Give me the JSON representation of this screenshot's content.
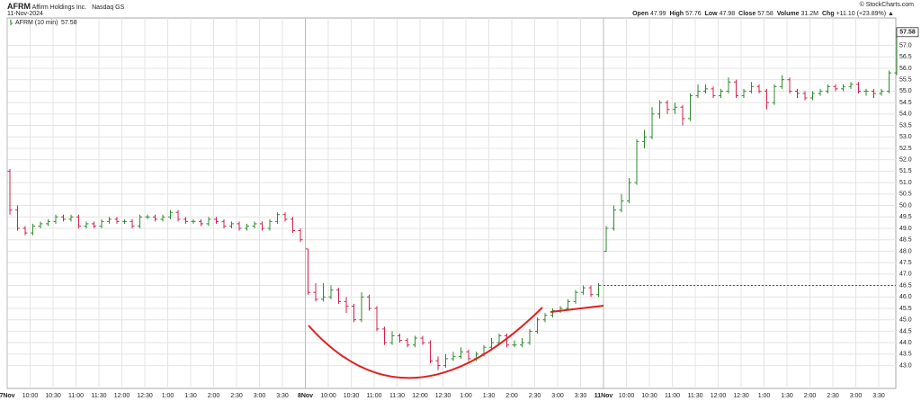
{
  "header": {
    "symbol": "AFRM",
    "name": "Affirm Holdings Inc.",
    "exchange": "Nasdaq GS",
    "date": "11-Nov-2024",
    "copyright": "© StockCharts.com",
    "stats": [
      {
        "label": "Open",
        "value": "47.99"
      },
      {
        "label": "High",
        "value": "57.76"
      },
      {
        "label": "Low",
        "value": "47.98"
      },
      {
        "label": "Close",
        "value": "57.58"
      },
      {
        "label": "Volume",
        "value": "31.2M"
      },
      {
        "label": "Chg",
        "value": "+11.10 (+23.89%) ▲"
      }
    ]
  },
  "chart_data": {
    "type": "ohlc",
    "categories": [
      "7Nov",
      null,
      null,
      "10:00",
      null,
      null,
      "10:30",
      null,
      null,
      "11:00",
      null,
      null,
      "11:30",
      null,
      null,
      "12:00",
      null,
      null,
      "12:30",
      null,
      null,
      "1:00",
      null,
      null,
      "1:30",
      null,
      null,
      "2:00",
      null,
      null,
      "2:30",
      null,
      null,
      "3:00",
      null,
      null,
      "3:30",
      null,
      null,
      "8Nov",
      null,
      null,
      "10:00",
      null,
      null,
      "10:30",
      null,
      null,
      "11:00",
      null,
      null,
      "11:30",
      null,
      null,
      "12:00",
      null,
      null,
      "12:30",
      null,
      null,
      "1:00",
      null,
      null,
      "1:30",
      null,
      null,
      "2:00",
      null,
      null,
      "2:30",
      null,
      null,
      "3:00",
      null,
      null,
      "3:30",
      null,
      null,
      "11Nov",
      null,
      null,
      "10:00",
      null,
      null,
      "10:30",
      null,
      null,
      "11:00",
      null,
      null,
      "11:30",
      null,
      null,
      "12:00",
      null,
      null,
      "12:30",
      null,
      null,
      "1:00",
      null,
      null,
      "1:30",
      null,
      null,
      "2:00",
      null,
      null,
      "2:30",
      null,
      null,
      "3:00",
      null,
      null,
      "3:30",
      null,
      null
    ],
    "series": [
      {
        "name": "AFRM (10 min)",
        "up_color": "#2e8b2e",
        "down_color": "#d6204a",
        "open": [
          51.5,
          49.8,
          49.0,
          48.8,
          49.1,
          49.2,
          49.3,
          49.5,
          49.4,
          49.5,
          49.1,
          49.2,
          49.1,
          49.3,
          49.4,
          49.3,
          49.3,
          49.1,
          49.5,
          49.5,
          49.4,
          49.5,
          49.7,
          49.4,
          49.3,
          49.3,
          49.2,
          49.4,
          49.3,
          49.1,
          49.2,
          49.0,
          49.1,
          49.2,
          49.0,
          49.3,
          49.6,
          49.4,
          48.9,
          48.1,
          46.2,
          45.9,
          46.0,
          46.3,
          45.8,
          45.6,
          45.0,
          46.0,
          45.5,
          44.6,
          44.0,
          44.3,
          44.1,
          43.9,
          44.2,
          44.0,
          43.2,
          43.0,
          43.3,
          43.4,
          43.6,
          43.3,
          43.5,
          43.8,
          44.0,
          44.3,
          43.9,
          43.9,
          44.0,
          44.5,
          45.0,
          45.2,
          45.4,
          45.5,
          45.8,
          46.2,
          46.4,
          46.1,
          47.99,
          49.0,
          49.8,
          50.2,
          51.0,
          52.8,
          53.0,
          54.0,
          54.5,
          54.2,
          54.3,
          53.8,
          54.8,
          55.0,
          55.1,
          54.8,
          55.0,
          55.4,
          54.8,
          55.0,
          55.2,
          55.0,
          54.5,
          55.2,
          55.5,
          55.0,
          54.9,
          54.7,
          54.9,
          55.0,
          55.2,
          55.1,
          55.2,
          55.3,
          55.0,
          55.0,
          54.9,
          55.0,
          55.8
        ],
        "high": [
          51.6,
          50.0,
          49.1,
          49.2,
          49.3,
          49.4,
          49.6,
          49.6,
          49.6,
          49.6,
          49.3,
          49.3,
          49.4,
          49.5,
          49.5,
          49.4,
          49.4,
          49.6,
          49.6,
          49.6,
          49.6,
          49.8,
          49.8,
          49.5,
          49.4,
          49.4,
          49.5,
          49.5,
          49.4,
          49.3,
          49.3,
          49.2,
          49.3,
          49.3,
          49.4,
          49.7,
          49.7,
          49.5,
          49.0,
          48.1,
          46.6,
          46.6,
          46.5,
          46.4,
          46.0,
          45.7,
          46.2,
          46.1,
          45.6,
          44.7,
          44.5,
          44.4,
          44.2,
          44.3,
          44.3,
          44.1,
          43.4,
          43.5,
          43.6,
          43.8,
          43.7,
          43.6,
          43.9,
          44.2,
          44.4,
          44.4,
          44.1,
          44.2,
          44.6,
          45.1,
          45.3,
          45.5,
          45.6,
          45.9,
          46.3,
          46.5,
          46.5,
          46.6,
          49.1,
          50.0,
          50.5,
          51.2,
          52.9,
          53.3,
          54.3,
          54.6,
          54.6,
          54.5,
          54.4,
          54.9,
          55.3,
          55.3,
          55.2,
          55.1,
          55.6,
          55.5,
          55.1,
          55.4,
          55.3,
          55.1,
          55.3,
          55.7,
          55.6,
          55.1,
          55.0,
          55.0,
          55.1,
          55.3,
          55.3,
          55.3,
          55.4,
          55.4,
          55.1,
          55.1,
          55.1,
          55.9,
          57.76
        ],
        "low": [
          49.6,
          48.9,
          48.7,
          48.7,
          49.0,
          49.1,
          49.2,
          49.3,
          49.3,
          49.0,
          49.0,
          49.0,
          49.0,
          49.2,
          49.2,
          49.2,
          49.0,
          49.0,
          49.4,
          49.3,
          49.3,
          49.4,
          49.3,
          49.2,
          49.2,
          49.1,
          49.1,
          49.2,
          49.0,
          49.0,
          48.9,
          48.9,
          49.0,
          48.9,
          48.9,
          49.2,
          49.3,
          48.8,
          48.4,
          46.1,
          45.8,
          45.8,
          45.9,
          45.7,
          45.3,
          44.9,
          44.9,
          45.4,
          44.5,
          43.9,
          43.9,
          44.0,
          43.8,
          43.8,
          43.9,
          43.1,
          42.8,
          42.9,
          43.2,
          43.3,
          43.2,
          43.2,
          43.4,
          43.7,
          43.9,
          43.8,
          43.8,
          43.8,
          43.9,
          44.4,
          44.9,
          45.1,
          45.3,
          45.4,
          45.7,
          46.1,
          46.0,
          46.0,
          47.98,
          48.9,
          49.7,
          50.1,
          50.9,
          52.5,
          52.9,
          53.8,
          54.0,
          54.0,
          53.5,
          53.7,
          54.7,
          54.9,
          54.7,
          54.7,
          54.9,
          54.7,
          54.7,
          54.9,
          54.9,
          54.2,
          54.4,
          55.1,
          54.9,
          54.7,
          54.6,
          54.6,
          54.8,
          54.9,
          55.0,
          55.0,
          55.1,
          54.9,
          54.8,
          54.7,
          54.8,
          54.9,
          55.7
        ],
        "close": [
          49.8,
          49.0,
          48.8,
          49.1,
          49.2,
          49.3,
          49.5,
          49.4,
          49.5,
          49.1,
          49.2,
          49.1,
          49.3,
          49.4,
          49.3,
          49.3,
          49.1,
          49.5,
          49.5,
          49.4,
          49.5,
          49.7,
          49.4,
          49.3,
          49.3,
          49.2,
          49.4,
          49.3,
          49.1,
          49.2,
          49.0,
          49.1,
          49.2,
          49.0,
          49.3,
          49.6,
          49.4,
          48.9,
          48.5,
          46.2,
          45.9,
          46.0,
          46.3,
          45.8,
          45.6,
          45.0,
          46.0,
          45.5,
          44.6,
          44.0,
          44.3,
          44.1,
          43.9,
          44.2,
          44.0,
          43.2,
          43.0,
          43.3,
          43.4,
          43.6,
          43.3,
          43.5,
          43.8,
          44.0,
          44.3,
          43.9,
          43.9,
          44.0,
          44.5,
          45.0,
          45.2,
          45.4,
          45.5,
          45.8,
          46.2,
          46.4,
          46.1,
          46.5,
          49.0,
          49.8,
          50.2,
          51.0,
          52.8,
          53.0,
          54.0,
          54.5,
          54.2,
          54.3,
          53.8,
          54.8,
          55.0,
          55.1,
          54.8,
          55.0,
          55.4,
          54.8,
          55.0,
          55.2,
          55.0,
          54.5,
          55.2,
          55.5,
          55.0,
          54.9,
          54.7,
          54.9,
          55.0,
          55.2,
          55.1,
          55.2,
          55.3,
          55.0,
          55.0,
          54.9,
          55.0,
          55.8,
          57.58
        ]
      }
    ],
    "ylim": [
      42.0,
      58.2
    ],
    "yticks": [
      {
        "value": 43,
        "label": "43.0"
      },
      {
        "value": 43.5,
        "label": "43.5"
      },
      {
        "value": 44,
        "label": "44.0"
      },
      {
        "value": 44.5,
        "label": "44.5"
      },
      {
        "value": 45,
        "label": "45.0"
      },
      {
        "value": 45.5,
        "label": "45.5"
      },
      {
        "value": 46,
        "label": "46.0"
      },
      {
        "value": 46.5,
        "label": "46.5"
      },
      {
        "value": 47,
        "label": "47.0"
      },
      {
        "value": 47.5,
        "label": "47.5"
      },
      {
        "value": 48,
        "label": "48.0"
      },
      {
        "value": 48.5,
        "label": "48.5"
      },
      {
        "value": 49,
        "label": "49.0"
      },
      {
        "value": 49.5,
        "label": "49.5"
      },
      {
        "value": 50,
        "label": "50.0"
      },
      {
        "value": 50.5,
        "label": "50.5"
      },
      {
        "value": 51,
        "label": "51.0"
      },
      {
        "value": 51.5,
        "label": "51.5"
      },
      {
        "value": 52,
        "label": "52.0"
      },
      {
        "value": 52.5,
        "label": "52.5"
      },
      {
        "value": 53,
        "label": "53.0"
      },
      {
        "value": 53.5,
        "label": "53.5"
      },
      {
        "value": 54,
        "label": "54.0"
      },
      {
        "value": 54.5,
        "label": "54.5"
      },
      {
        "value": 55,
        "label": "55.0"
      },
      {
        "value": 55.5,
        "label": "55.5"
      },
      {
        "value": 56,
        "label": "56.0"
      },
      {
        "value": 56.5,
        "label": "56.5"
      },
      {
        "value": 57,
        "label": "57.0"
      }
    ],
    "grid": true,
    "reference_line": {
      "value": 46.5,
      "color": "#3a4fc8",
      "from_category": 78
    }
  }
}
